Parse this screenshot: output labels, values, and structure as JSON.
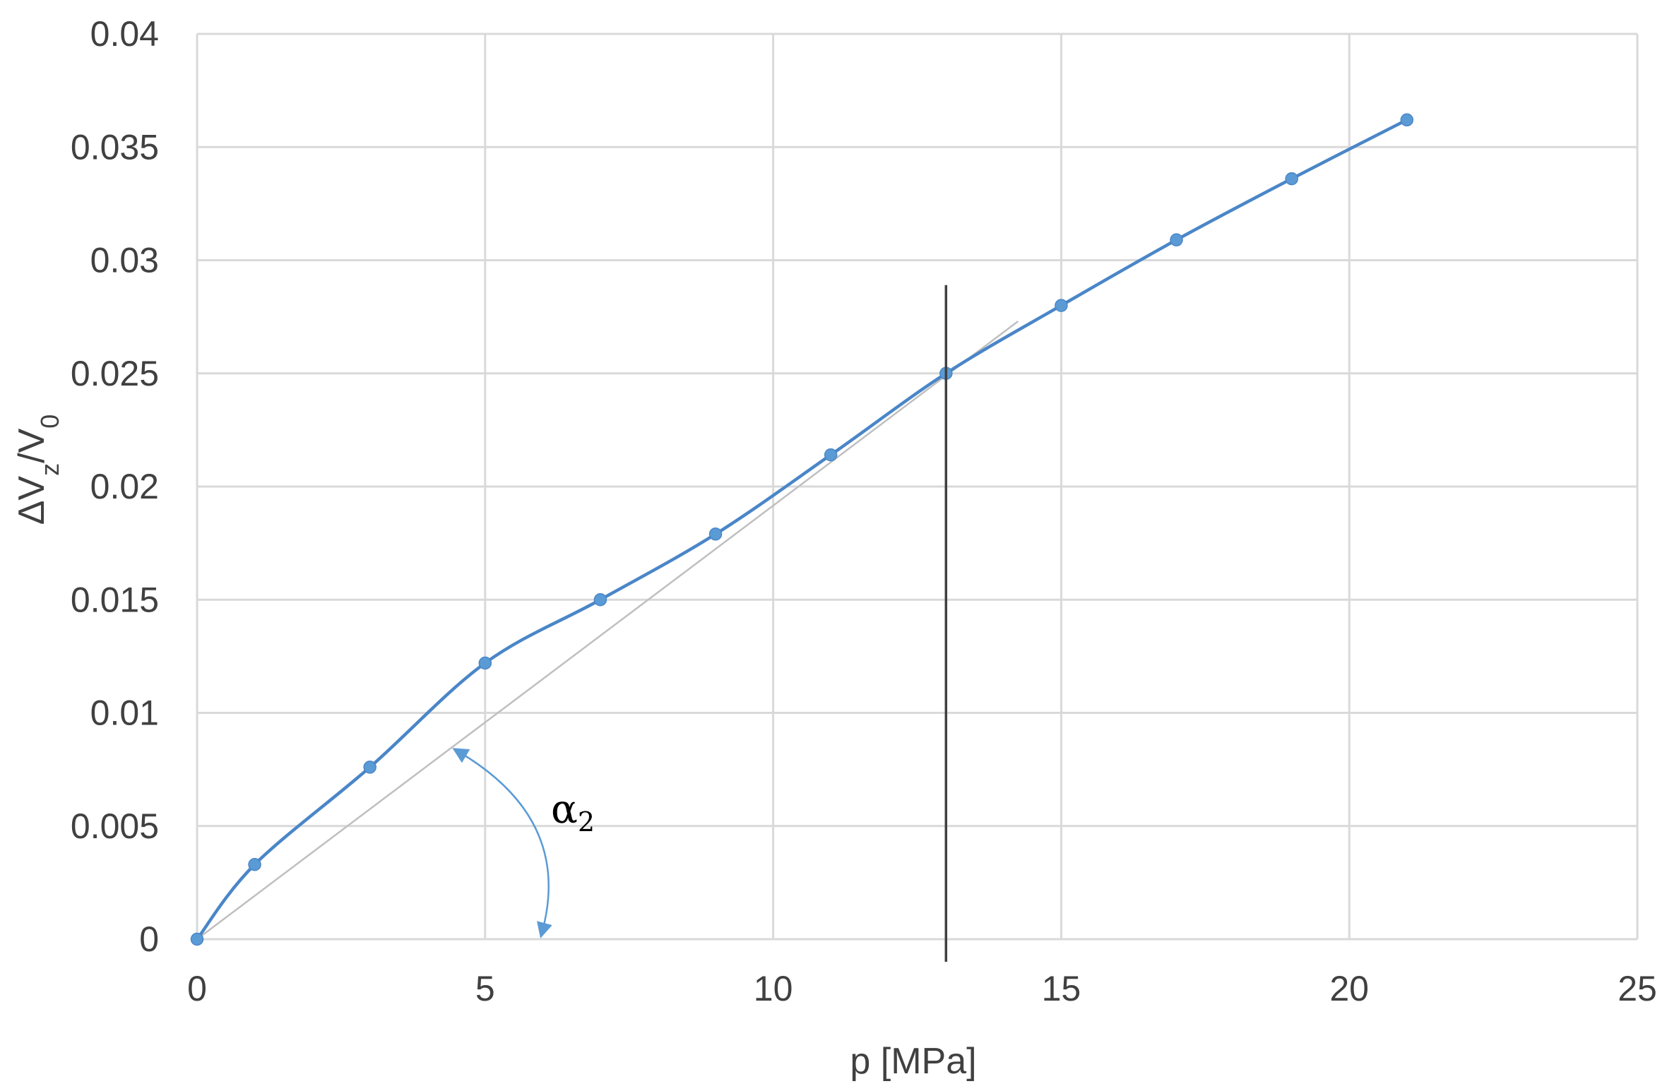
{
  "chart_data": {
    "type": "scatter",
    "xlabel": "p [MPa]",
    "ylabel": "ΔVz/V0",
    "xlim": [
      0,
      25
    ],
    "ylim": [
      0,
      0.04
    ],
    "x_ticks": [
      0,
      5,
      10,
      15,
      20,
      25
    ],
    "y_ticks": [
      0,
      0.005,
      0.01,
      0.015,
      0.02,
      0.025,
      0.03,
      0.035,
      0.04
    ],
    "x_tick_labels": [
      "0",
      "5",
      "10",
      "15",
      "20",
      "25"
    ],
    "y_tick_labels": [
      "0",
      "0.005",
      "0.01",
      "0.015",
      "0.02",
      "0.025",
      "0.03",
      "0.035",
      "0.04"
    ],
    "grid": true,
    "smoothed_line": true,
    "series": [
      {
        "x": [
          0,
          1,
          3,
          5,
          7,
          9,
          11,
          13,
          15,
          17,
          19,
          21
        ],
        "y": [
          0,
          0.0033,
          0.0076,
          0.0122,
          0.015,
          0.0179,
          0.0214,
          0.025,
          0.028,
          0.0309,
          0.0336,
          0.0362
        ]
      }
    ],
    "annotations": {
      "vertical_line_x": 13,
      "vertical_line_y_range": [
        -0.001,
        0.0289
      ],
      "tangent_line": {
        "from": [
          0,
          0
        ],
        "to": [
          14.25,
          0.0273
        ]
      },
      "angle_label": "α",
      "angle_label_sub": "2",
      "colors": {
        "series": "#4a86c8",
        "marker": "#5b9bd5",
        "vertical_line": "#404040",
        "tangent_line": "#bfbfbf",
        "angle_arc": "#5b9bd5"
      }
    }
  }
}
